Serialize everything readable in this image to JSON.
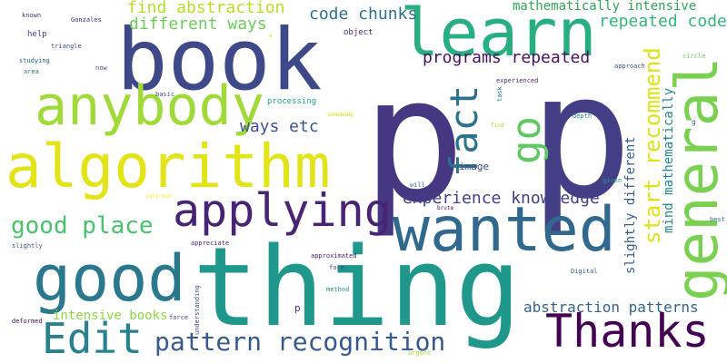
{
  "words": [
    {
      "text": "p",
      "color": "#453781"
    },
    {
      "text": "p",
      "color": "#433e85"
    },
    {
      "text": "thing",
      "color": "#1f988b"
    },
    {
      "text": "book",
      "color": "#3e4989"
    },
    {
      "text": "algorithm",
      "color": "#e2e418"
    },
    {
      "text": "learn",
      "color": "#29af7f"
    },
    {
      "text": "wanted",
      "color": "#31688e"
    },
    {
      "text": "anybody",
      "color": "#a0da39"
    },
    {
      "text": "good",
      "color": "#2a788e"
    },
    {
      "text": "general",
      "color": "#7ad151"
    },
    {
      "text": "applying",
      "color": "#482475"
    },
    {
      "text": "Thanks",
      "color": "#440154"
    },
    {
      "text": "Edit",
      "color": "#26828e"
    },
    {
      "text": "fact",
      "color": "#2c718e"
    },
    {
      "text": "go",
      "color": "#5ec962"
    },
    {
      "text": "start recommend",
      "color": "#dde318"
    },
    {
      "text": "pattern recognition",
      "color": "#38598c"
    },
    {
      "text": "good place",
      "color": "#4ac16d"
    },
    {
      "text": "find abstraction",
      "color": "#b5de2b"
    },
    {
      "text": "different ways",
      "color": "#6ccd5a"
    },
    {
      "text": "code chunks",
      "color": "#2d708e"
    },
    {
      "text": "repeated code",
      "color": "#35b779"
    },
    {
      "text": "programs repeated",
      "color": "#471164"
    },
    {
      "text": "experience knowledge",
      "color": "#424086"
    },
    {
      "text": "abstraction patterns",
      "color": "#33638d"
    },
    {
      "text": "ways etc",
      "color": "#3b528b"
    },
    {
      "text": "mathematically intensive",
      "color": "#31a354"
    },
    {
      "text": "slightly different",
      "color": "#365c8d"
    },
    {
      "text": "mind mathematically",
      "color": "#24868e"
    },
    {
      "text": "intensive books",
      "color": "#8ed645"
    },
    {
      "text": "image",
      "color": "#3e4a89"
    },
    {
      "text": "object",
      "color": "#482576"
    },
    {
      "text": "help",
      "color": "#433e85"
    },
    {
      "text": "known",
      "color": "#46337e"
    },
    {
      "text": "Gonzales",
      "color": "#482979"
    },
    {
      "text": "triangle",
      "color": "#3e4c8a"
    },
    {
      "text": "studying",
      "color": "#31688e"
    },
    {
      "text": "area",
      "color": "#2f6c8e"
    },
    {
      "text": "now",
      "color": "#3b528b"
    },
    {
      "text": "basic",
      "color": "#3b518b"
    },
    {
      "text": "processing",
      "color": "#20a386"
    },
    {
      "text": "somebody",
      "color": "#d0e11c"
    },
    {
      "text": "experienced",
      "color": "#482878"
    },
    {
      "text": "task",
      "color": "#2a788e"
    },
    {
      "text": "approach",
      "color": "#3a548c"
    },
    {
      "text": "circle",
      "color": "#6ccd5a"
    },
    {
      "text": "find",
      "color": "#addc30"
    },
    {
      "text": "depth",
      "color": "#23898e"
    },
    {
      "text": "g",
      "color": "#3a538b"
    },
    {
      "text": "will",
      "color": "#2e6d8e"
    },
    {
      "text": "brute",
      "color": "#471063"
    },
    {
      "text": "given",
      "color": "#1f9e89"
    },
    {
      "text": "interest",
      "color": "#fde725"
    },
    {
      "text": "best",
      "color": "#2e6e8e"
    },
    {
      "text": "slightly",
      "color": "#3b528b"
    },
    {
      "text": "appreciate",
      "color": "#481f70"
    },
    {
      "text": "form",
      "color": "#3f4788"
    },
    {
      "text": "approximated",
      "color": "#481b6d"
    },
    {
      "text": "Digital",
      "color": "#355f8d"
    },
    {
      "text": "method",
      "color": "#21918c"
    },
    {
      "text": "understanding",
      "color": "#3f4889"
    },
    {
      "text": "deformed",
      "color": "#470d60"
    },
    {
      "text": "force",
      "color": "#404688"
    },
    {
      "text": "p",
      "color": "#46327e"
    },
    {
      "text": "urgent",
      "color": "#a5db36"
    },
    {
      "text": "e",
      "color": "#d8e219"
    }
  ]
}
